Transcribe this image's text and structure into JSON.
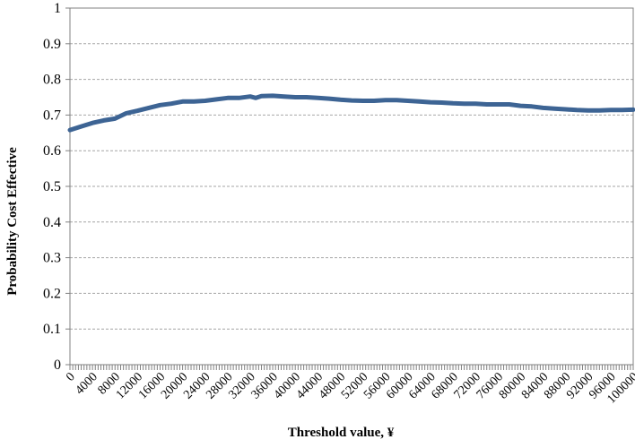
{
  "chart_data": {
    "type": "line",
    "title": "",
    "xlabel": "Threshold value, ¥",
    "ylabel": "Probability Cost Effective",
    "xlim": [
      0,
      100000
    ],
    "ylim": [
      0,
      1
    ],
    "grid": "horizontal-dashed",
    "legend": "none",
    "line_color": "#3D6494",
    "y_ticks": [
      "0",
      "0.1",
      "0.2",
      "0.3",
      "0.4",
      "0.5",
      "0.6",
      "0.7",
      "0.8",
      "0.9",
      "1"
    ],
    "x_ticks": [
      "0",
      "4000",
      "8000",
      "12000",
      "16000",
      "20000",
      "24000",
      "28000",
      "32000",
      "36000",
      "40000",
      "44000",
      "48000",
      "52000",
      "56000",
      "60000",
      "64000",
      "68000",
      "72000",
      "76000",
      "80000",
      "84000",
      "88000",
      "92000",
      "96000",
      "100000"
    ],
    "series": [
      {
        "x": [
          0,
          2000,
          4000,
          6000,
          8000,
          10000,
          12000,
          14000,
          16000,
          18000,
          20000,
          22000,
          24000,
          26000,
          28000,
          30000,
          32000,
          33000,
          34000,
          36000,
          38000,
          40000,
          42000,
          44000,
          46000,
          48000,
          50000,
          52000,
          54000,
          56000,
          58000,
          60000,
          62000,
          64000,
          66000,
          68000,
          70000,
          72000,
          74000,
          76000,
          78000,
          80000,
          82000,
          84000,
          86000,
          88000,
          90000,
          92000,
          94000,
          96000,
          98000,
          100000
        ],
        "y": [
          0.658,
          0.668,
          0.678,
          0.685,
          0.69,
          0.705,
          0.712,
          0.72,
          0.728,
          0.732,
          0.738,
          0.738,
          0.74,
          0.744,
          0.748,
          0.748,
          0.752,
          0.748,
          0.753,
          0.754,
          0.752,
          0.75,
          0.75,
          0.748,
          0.746,
          0.743,
          0.741,
          0.74,
          0.74,
          0.742,
          0.742,
          0.74,
          0.738,
          0.736,
          0.735,
          0.733,
          0.732,
          0.732,
          0.73,
          0.73,
          0.73,
          0.726,
          0.724,
          0.72,
          0.718,
          0.716,
          0.714,
          0.713,
          0.713,
          0.714,
          0.714,
          0.715
        ]
      }
    ]
  }
}
